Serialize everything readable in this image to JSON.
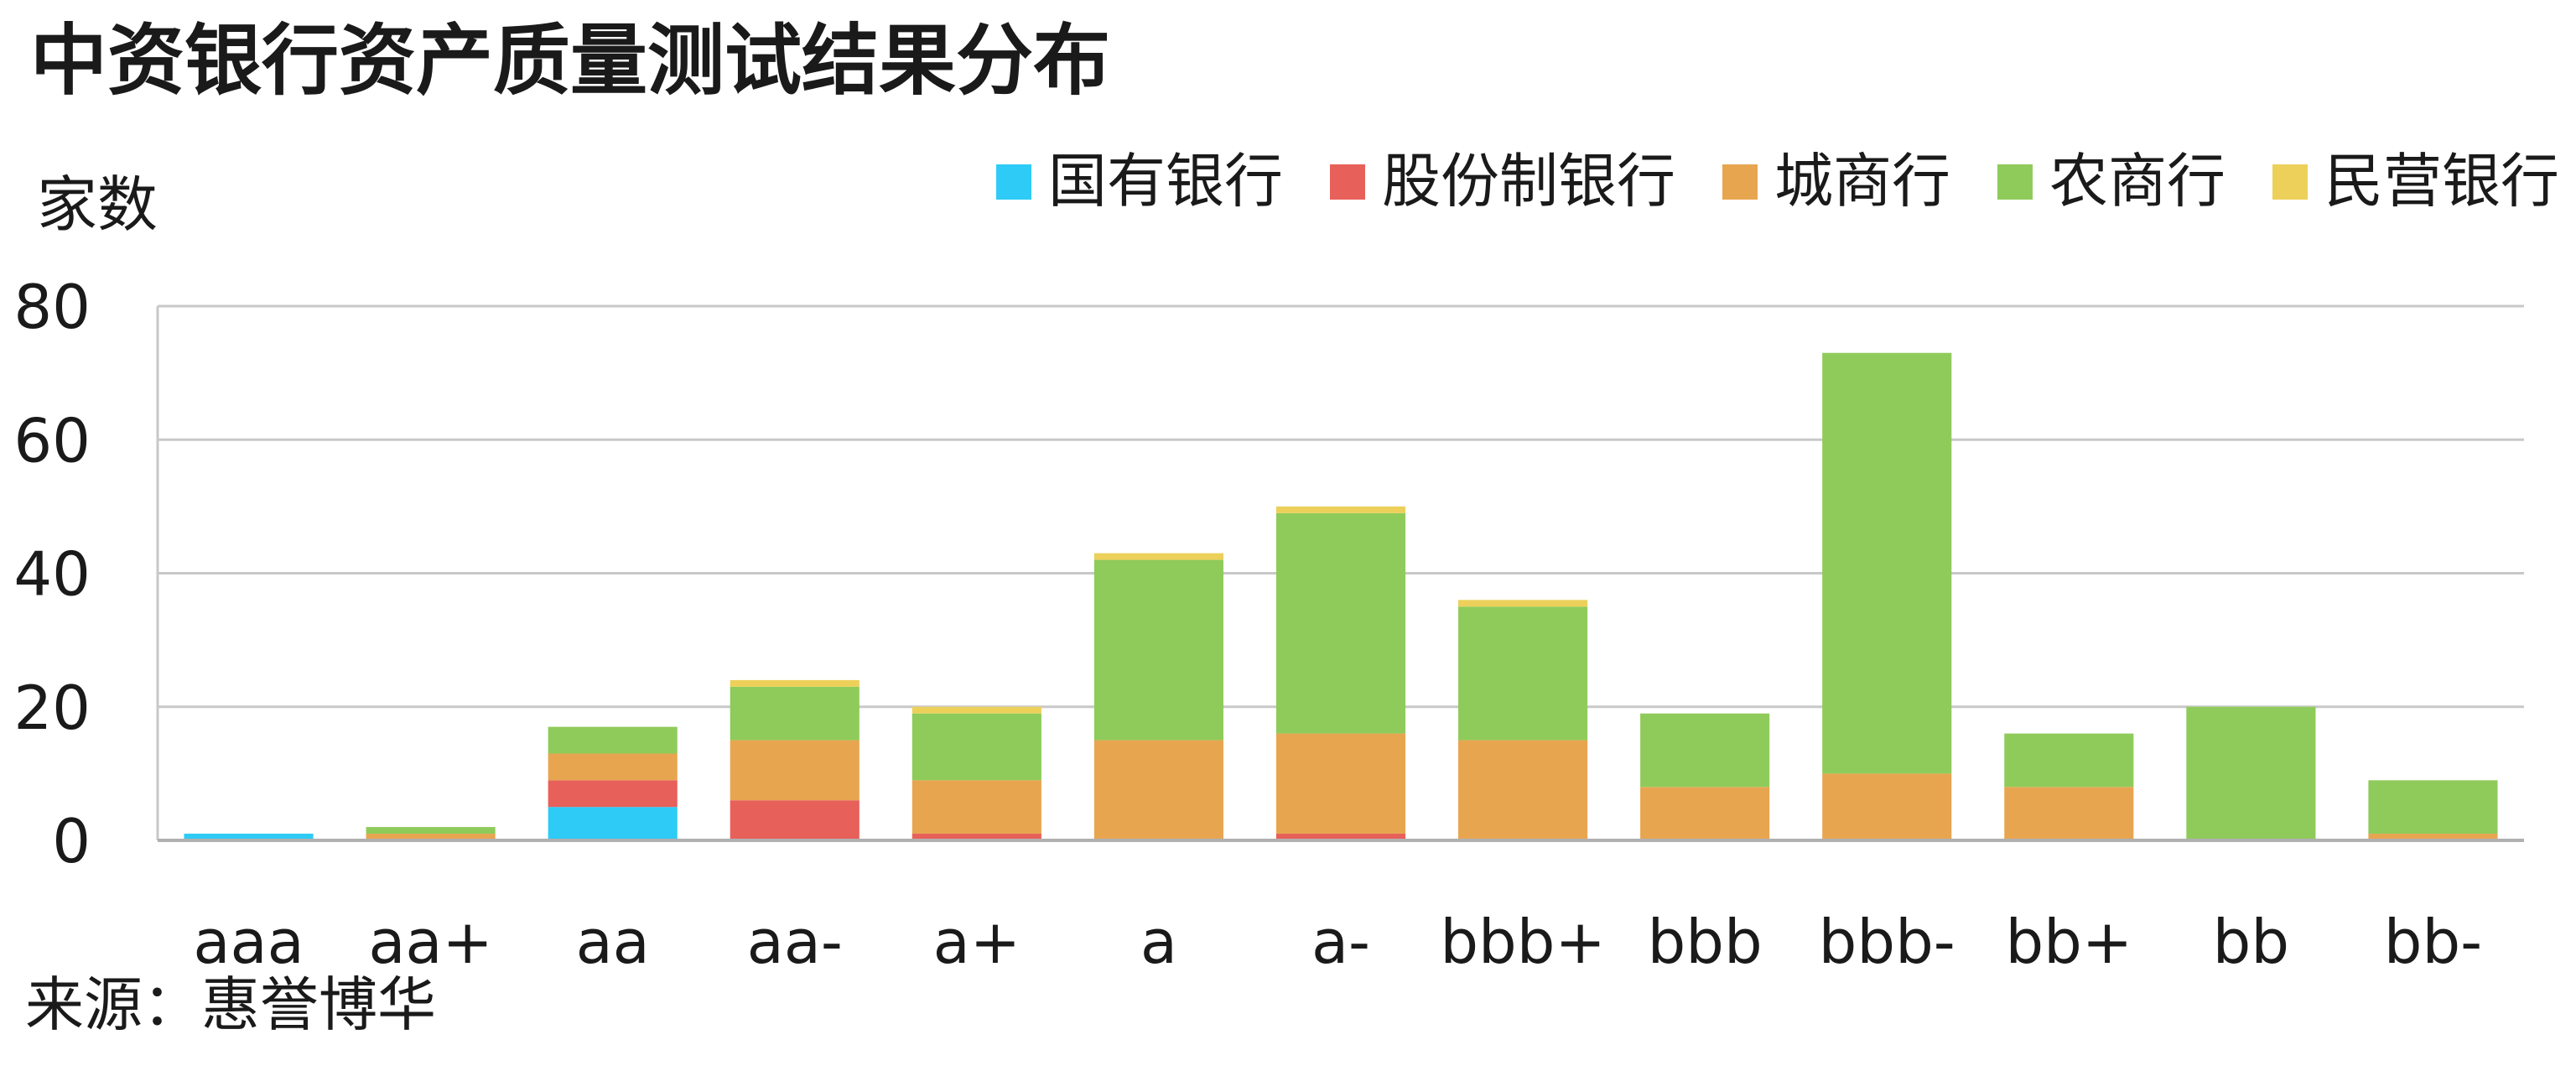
{
  "chart_data": {
    "type": "bar",
    "stacked": true,
    "title": "中资银行资产质量测试结果分布",
    "ylabel": "家数",
    "xlabel": "",
    "source": "来源：惠誉博华",
    "ylim": [
      0,
      80
    ],
    "yticks": [
      0,
      20,
      40,
      60,
      80
    ],
    "grid": true,
    "legend_position": "top-right",
    "categories": [
      "aaa",
      "aa+",
      "aa",
      "aa-",
      "a+",
      "a",
      "a-",
      "bbb+",
      "bbb",
      "bbb-",
      "bb+",
      "bb",
      "bb-"
    ],
    "series": [
      {
        "name": "国有银行",
        "color": "#2ecbf6",
        "values": [
          1,
          0,
          5,
          0,
          0,
          0,
          0,
          0,
          0,
          0,
          0,
          0,
          0
        ]
      },
      {
        "name": "股份制银行",
        "color": "#e8605a",
        "values": [
          0,
          0,
          4,
          6,
          1,
          0,
          1,
          0,
          0,
          0,
          0,
          0,
          0
        ]
      },
      {
        "name": "城商行",
        "color": "#e8a550",
        "values": [
          0,
          1,
          4,
          9,
          8,
          15,
          15,
          15,
          8,
          10,
          8,
          0,
          1
        ]
      },
      {
        "name": "农商行",
        "color": "#8fcb5a",
        "values": [
          0,
          1,
          4,
          8,
          10,
          27,
          33,
          20,
          11,
          63,
          8,
          20,
          8
        ]
      },
      {
        "name": "民营银行",
        "color": "#ecd05a",
        "values": [
          0,
          0,
          0,
          1,
          1,
          1,
          1,
          1,
          0,
          0,
          0,
          0,
          0
        ]
      }
    ]
  }
}
